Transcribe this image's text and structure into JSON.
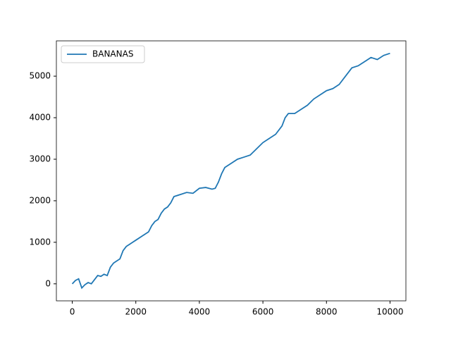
{
  "chart_data": {
    "type": "line",
    "x": [
      0,
      100,
      200,
      300,
      400,
      500,
      600,
      700,
      800,
      900,
      1000,
      1100,
      1200,
      1300,
      1400,
      1500,
      1600,
      1700,
      1800,
      1900,
      2000,
      2200,
      2400,
      2500,
      2600,
      2700,
      2800,
      2900,
      3000,
      3100,
      3200,
      3400,
      3600,
      3800,
      4000,
      4200,
      4400,
      4500,
      4600,
      4700,
      4800,
      5000,
      5200,
      5400,
      5600,
      5800,
      6000,
      6200,
      6400,
      6600,
      6700,
      6800,
      7000,
      7200,
      7400,
      7600,
      7800,
      8000,
      8200,
      8400,
      8600,
      8800,
      9000,
      9200,
      9400,
      9600,
      9800,
      10000
    ],
    "series": [
      {
        "name": "BANANAS",
        "color": "#1f77b4",
        "values": [
          0,
          80,
          120,
          -100,
          -20,
          30,
          0,
          100,
          200,
          180,
          230,
          200,
          400,
          500,
          550,
          600,
          800,
          900,
          950,
          1000,
          1050,
          1150,
          1250,
          1400,
          1500,
          1550,
          1700,
          1800,
          1850,
          1950,
          2100,
          2150,
          2200,
          2180,
          2300,
          2320,
          2280,
          2300,
          2450,
          2650,
          2800,
          2900,
          3000,
          3050,
          3100,
          3250,
          3400,
          3500,
          3600,
          3800,
          4000,
          4100,
          4100,
          4200,
          4300,
          4450,
          4550,
          4650,
          4700,
          4800,
          5000,
          5200,
          5250,
          5350,
          5450,
          5400,
          5500,
          5550
        ]
      }
    ],
    "xlim": [
      -500,
      10500
    ],
    "xticks": [
      0,
      2000,
      4000,
      6000,
      8000,
      10000
    ],
    "ylim": [
      -410,
      5850
    ],
    "yticks": [
      0,
      1000,
      2000,
      3000,
      4000,
      5000
    ],
    "legend": "upper left"
  }
}
